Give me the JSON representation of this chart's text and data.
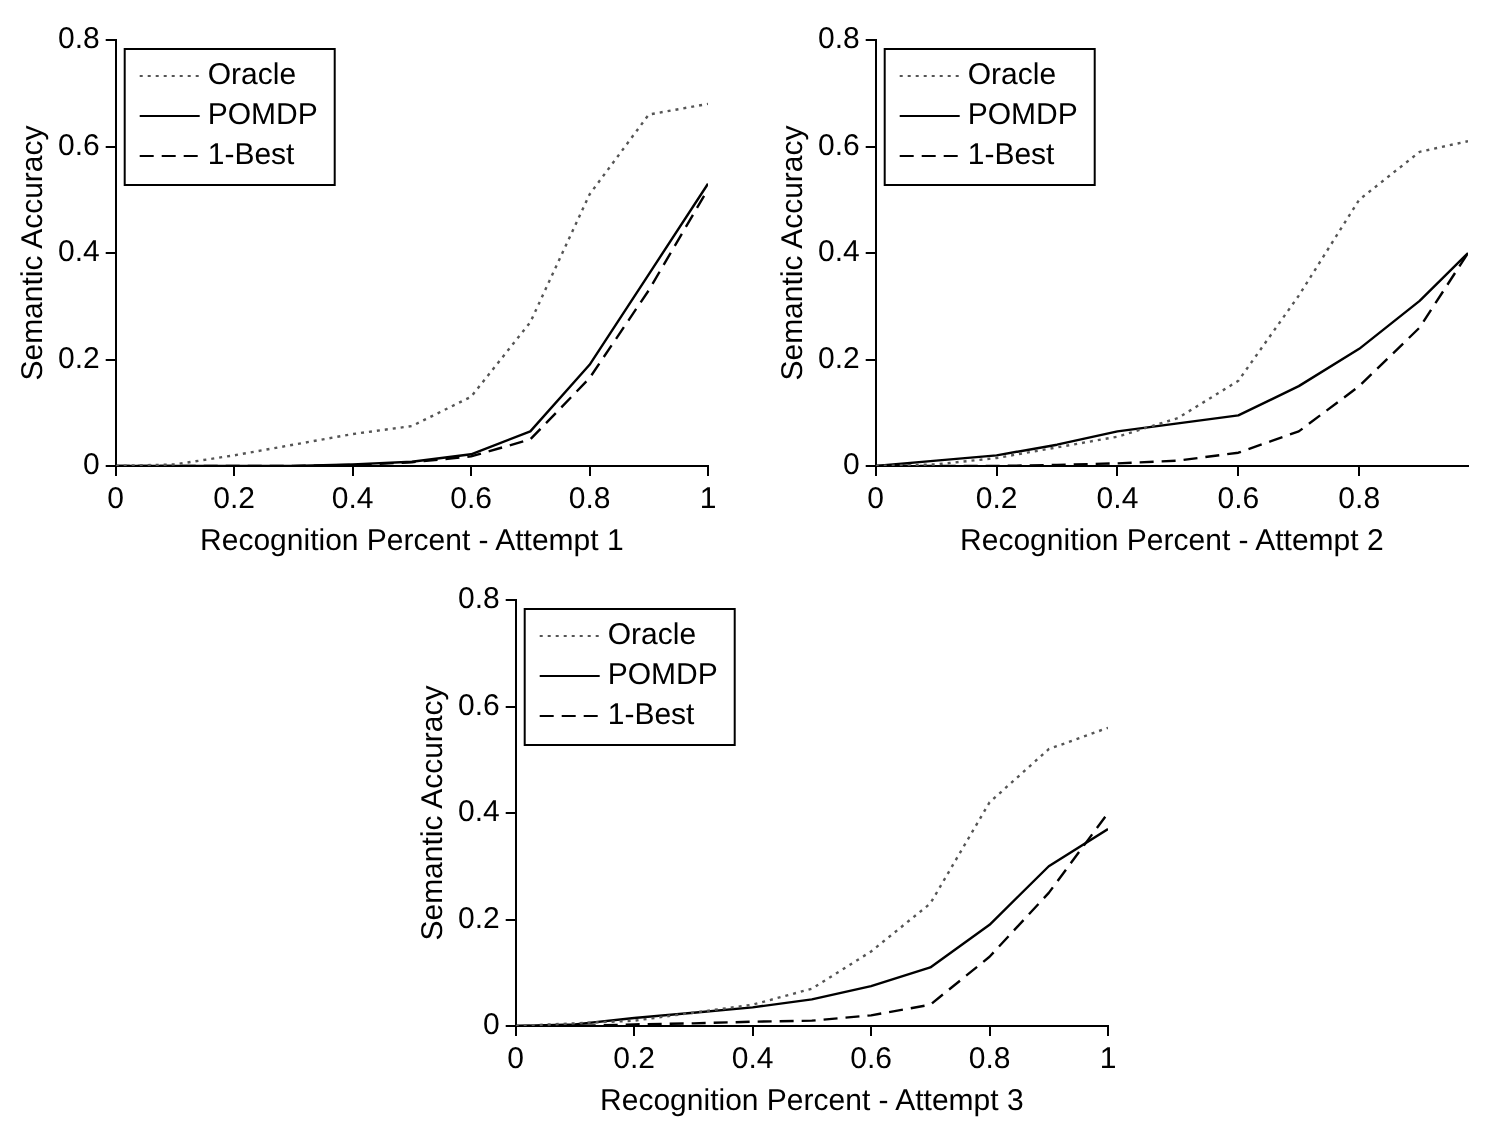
{
  "chart_data": [
    {
      "type": "line",
      "xlabel": "Recognition Percent - Attempt 1",
      "ylabel": "Semantic Accuracy",
      "x": [
        0,
        0.1,
        0.2,
        0.3,
        0.4,
        0.5,
        0.6,
        0.7,
        0.8,
        0.9,
        1
      ],
      "xlim": [
        0,
        1
      ],
      "xticks": [
        0,
        0.2,
        0.4,
        0.6,
        0.8,
        1
      ],
      "ylim": [
        0,
        0.8
      ],
      "yticks": [
        0,
        0.2,
        0.4,
        0.6,
        0.8
      ],
      "grid": false,
      "legend": "top left",
      "series": [
        {
          "name": "Oracle",
          "color": "#555555",
          "line_style": "dotted",
          "values": [
            0,
            0.003,
            0.02,
            0.04,
            0.06,
            0.075,
            0.13,
            0.27,
            0.51,
            0.66,
            0.68
          ]
        },
        {
          "name": "POMDP",
          "color": "#000000",
          "line_style": "solid",
          "values": [
            0,
            0,
            0,
            0,
            0.003,
            0.008,
            0.022,
            0.065,
            0.19,
            0.36,
            0.53
          ]
        },
        {
          "name": "1-Best",
          "color": "#000000",
          "line_style": "dashed",
          "values": [
            0,
            0,
            0,
            0,
            0.002,
            0.007,
            0.018,
            0.05,
            0.165,
            0.33,
            0.52
          ]
        }
      ]
    },
    {
      "type": "line",
      "xlabel": "Recognition Percent - Attempt 2",
      "ylabel": "Semantic Accuracy",
      "x": [
        0,
        0.1,
        0.2,
        0.3,
        0.4,
        0.5,
        0.6,
        0.7,
        0.8,
        0.9,
        0.98
      ],
      "xlim": [
        0,
        0.98
      ],
      "xticks": [
        0,
        0.2,
        0.4,
        0.6,
        0.8
      ],
      "ylim": [
        0,
        0.8
      ],
      "yticks": [
        0,
        0.2,
        0.4,
        0.6,
        0.8
      ],
      "grid": false,
      "legend": "top left",
      "series": [
        {
          "name": "Oracle",
          "color": "#555555",
          "line_style": "dotted",
          "values": [
            0,
            0.003,
            0.015,
            0.035,
            0.055,
            0.09,
            0.16,
            0.32,
            0.5,
            0.59,
            0.61
          ]
        },
        {
          "name": "POMDP",
          "color": "#000000",
          "line_style": "solid",
          "values": [
            0,
            0.01,
            0.02,
            0.04,
            0.065,
            0.08,
            0.095,
            0.15,
            0.22,
            0.31,
            0.4
          ]
        },
        {
          "name": "1-Best",
          "color": "#000000",
          "line_style": "dashed",
          "values": [
            0,
            0,
            0,
            0.002,
            0.005,
            0.01,
            0.025,
            0.065,
            0.15,
            0.26,
            0.4
          ]
        }
      ]
    },
    {
      "type": "line",
      "xlabel": "Recognition Percent - Attempt 3",
      "ylabel": "Semantic Accuracy",
      "x": [
        0,
        0.1,
        0.2,
        0.3,
        0.4,
        0.5,
        0.6,
        0.7,
        0.8,
        0.9,
        1
      ],
      "xlim": [
        0,
        1
      ],
      "xticks": [
        0,
        0.2,
        0.4,
        0.6,
        0.8,
        1
      ],
      "ylim": [
        0,
        0.8
      ],
      "yticks": [
        0,
        0.2,
        0.4,
        0.6,
        0.8
      ],
      "grid": false,
      "legend": "top left",
      "series": [
        {
          "name": "Oracle",
          "color": "#555555",
          "line_style": "dotted",
          "values": [
            0,
            0.005,
            0.01,
            0.025,
            0.04,
            0.07,
            0.14,
            0.23,
            0.42,
            0.52,
            0.56
          ]
        },
        {
          "name": "POMDP",
          "color": "#000000",
          "line_style": "solid",
          "values": [
            0,
            0.003,
            0.015,
            0.025,
            0.035,
            0.05,
            0.075,
            0.11,
            0.19,
            0.3,
            0.37
          ]
        },
        {
          "name": "1-Best",
          "color": "#000000",
          "line_style": "dashed",
          "values": [
            0,
            0,
            0.003,
            0.005,
            0.008,
            0.01,
            0.02,
            0.04,
            0.13,
            0.25,
            0.4
          ]
        }
      ]
    }
  ]
}
